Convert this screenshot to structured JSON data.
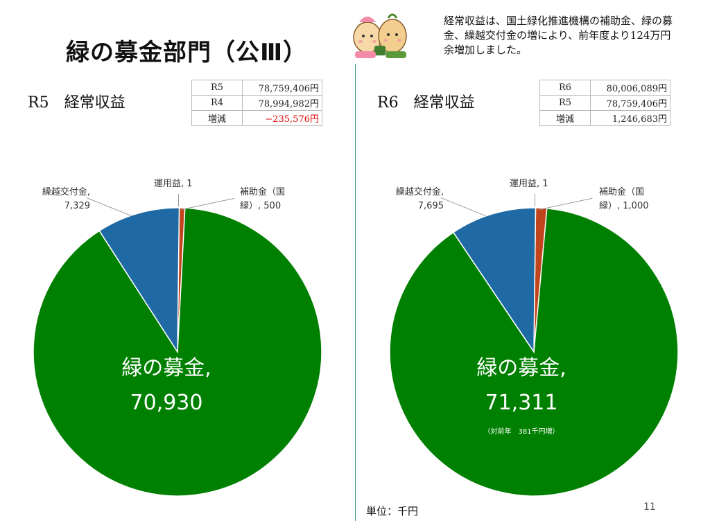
{
  "page_title": "緑の募金部門（公Ⅲ）",
  "note": "経常収益は、国土緑化推進機構の補助金、緑の募金、繰越交付金の増により、前年度より124万円余増加しました。",
  "unit_label": "単位：千円",
  "page_number": "11",
  "colors": {
    "green": "#008000",
    "blue": "#1f6aa5",
    "orange": "#c0441c"
  },
  "left": {
    "era": "R5",
    "heading": "経常収益",
    "table": [
      {
        "label": "R5",
        "value": "78,759,406円"
      },
      {
        "label": "R4",
        "value": "78,994,982円"
      },
      {
        "label": "増減",
        "value": "−235,576円"
      }
    ]
  },
  "right": {
    "era": "R6",
    "heading": "経常収益",
    "table": [
      {
        "label": "R6",
        "value": "80,006,089円"
      },
      {
        "label": "R5",
        "value": "78,759,406円"
      },
      {
        "label": "増減",
        "value": "1,246,683円"
      }
    ],
    "sub_note": "（対前年　381千円増）"
  },
  "chart_data": [
    {
      "type": "pie",
      "title": "R5　経常収益",
      "slices": [
        {
          "name": "運用益",
          "value": 1,
          "label_name": "運用益,",
          "label_value": "1"
        },
        {
          "name": "補助金（国緑）",
          "value": 500,
          "label_name_1": "補助金（国",
          "label_name_2": "緑）",
          "label_value": "500"
        },
        {
          "name": "緑の募金",
          "value": 70930,
          "label_name": "緑の募金,",
          "label_value": "70,930"
        },
        {
          "name": "繰越交付金",
          "value": 7329,
          "label_name": "繰越交付金,",
          "label_value": "7,329"
        }
      ]
    },
    {
      "type": "pie",
      "title": "R6　経常収益",
      "slices": [
        {
          "name": "運用益",
          "value": 1,
          "label_name": "運用益,",
          "label_value": "1"
        },
        {
          "name": "補助金（国緑）",
          "value": 1000,
          "label_name_1": "補助金（国",
          "label_name_2": "緑）",
          "label_value": "1,000"
        },
        {
          "name": "緑の募金",
          "value": 71311,
          "label_name": "緑の募金,",
          "label_value": "71,311"
        },
        {
          "name": "繰越交付金",
          "value": 7695,
          "label_name": "繰越交付金,",
          "label_value": "7,695"
        }
      ]
    }
  ]
}
